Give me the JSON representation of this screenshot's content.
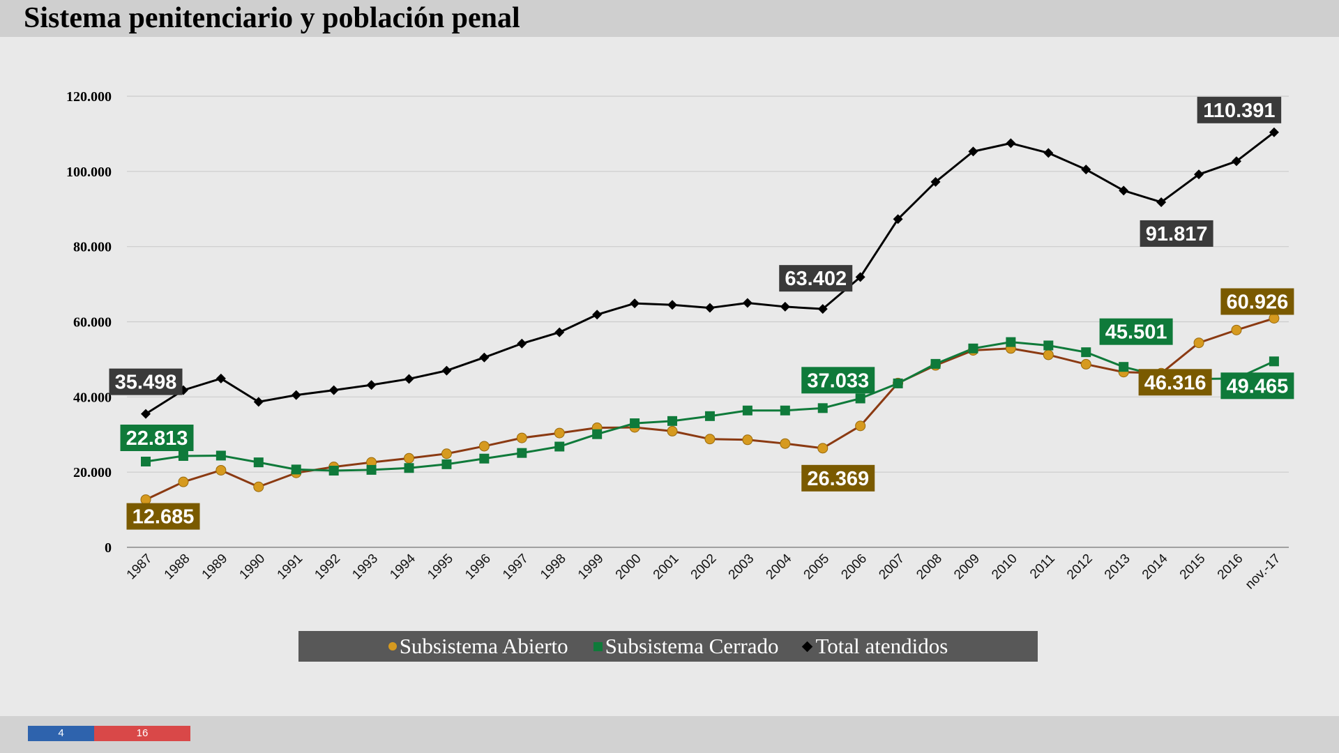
{
  "page": {
    "title": "Sistema penitenciario y población penal",
    "footer_left": "4",
    "footer_right": "16"
  },
  "colors": {
    "abierto": "#d69a1f",
    "abierto_line": "#8b3a12",
    "abierto_label_bg": "#7a5a00",
    "cerrado": "#0f7a3a",
    "cerrado_label_bg": "#0f7a3a",
    "total": "#000000",
    "total_label_bg": "#3a3a3a",
    "grid": "#cccccc"
  },
  "chart_data": {
    "type": "line",
    "title": "",
    "xlabel": "",
    "ylabel": "",
    "ylim": [
      0,
      120000
    ],
    "yticks": [
      0,
      20000,
      40000,
      60000,
      80000,
      100000,
      120000
    ],
    "ytick_labels": [
      "0",
      "20.000",
      "40.000",
      "60.000",
      "80.000",
      "100.000",
      "120.000"
    ],
    "categories": [
      "1987",
      "1988",
      "1989",
      "1990",
      "1991",
      "1992",
      "1993",
      "1994",
      "1995",
      "1996",
      "1997",
      "1998",
      "1999",
      "2000",
      "2001",
      "2002",
      "2003",
      "2004",
      "2005",
      "2006",
      "2007",
      "2008",
      "2009",
      "2010",
      "2011",
      "2012",
      "2013",
      "2014",
      "2015",
      "2016",
      "nov.-17"
    ],
    "legend_position": "bottom",
    "series": [
      {
        "key": "abierto",
        "name": "Subsistema Abierto",
        "marker": "circle",
        "values": [
          12685,
          17400,
          20500,
          16100,
          19800,
          21400,
          22600,
          23700,
          24900,
          26900,
          29100,
          30400,
          31800,
          31900,
          30900,
          28800,
          28600,
          27600,
          26369,
          32300,
          43700,
          48400,
          52400,
          52900,
          51200,
          48700,
          46600,
          46316,
          54400,
          57800,
          60926
        ]
      },
      {
        "key": "cerrado",
        "name": "Subsistema Cerrado",
        "marker": "square",
        "values": [
          22813,
          24300,
          24400,
          22600,
          20700,
          20400,
          20600,
          21100,
          22100,
          23600,
          25100,
          26800,
          30100,
          33000,
          33600,
          34900,
          36400,
          36400,
          37033,
          39600,
          43600,
          48800,
          52900,
          54600,
          53700,
          51900,
          48000,
          45501,
          44800,
          44900,
          49465
        ]
      },
      {
        "key": "total",
        "name": "Total atendidos",
        "marker": "diamond",
        "values": [
          35498,
          41800,
          44900,
          38700,
          40500,
          41800,
          43200,
          44800,
          47000,
          50500,
          54200,
          57200,
          61900,
          64900,
          64500,
          63700,
          65000,
          64000,
          63402,
          71900,
          87300,
          97200,
          105300,
          107500,
          104900,
          100500,
          94900,
          91817,
          99200,
          102700,
          110391
        ]
      }
    ],
    "data_labels": [
      {
        "series": "total",
        "index": 0,
        "text": "35.498"
      },
      {
        "series": "total",
        "index": 18,
        "text": "63.402"
      },
      {
        "series": "total",
        "index": 27,
        "text": "91.817"
      },
      {
        "series": "total",
        "index": 30,
        "text": "110.391"
      },
      {
        "series": "cerrado",
        "index": 0,
        "text": "22.813"
      },
      {
        "series": "cerrado",
        "index": 18,
        "text": "37.033"
      },
      {
        "series": "cerrado",
        "index": 27,
        "text": "45.501"
      },
      {
        "series": "cerrado",
        "index": 30,
        "text": "49.465"
      },
      {
        "series": "abierto",
        "index": 0,
        "text": "12.685"
      },
      {
        "series": "abierto",
        "index": 18,
        "text": "26.369"
      },
      {
        "series": "abierto",
        "index": 27,
        "text": "46.316"
      },
      {
        "series": "abierto",
        "index": 30,
        "text": "60.926"
      }
    ]
  }
}
